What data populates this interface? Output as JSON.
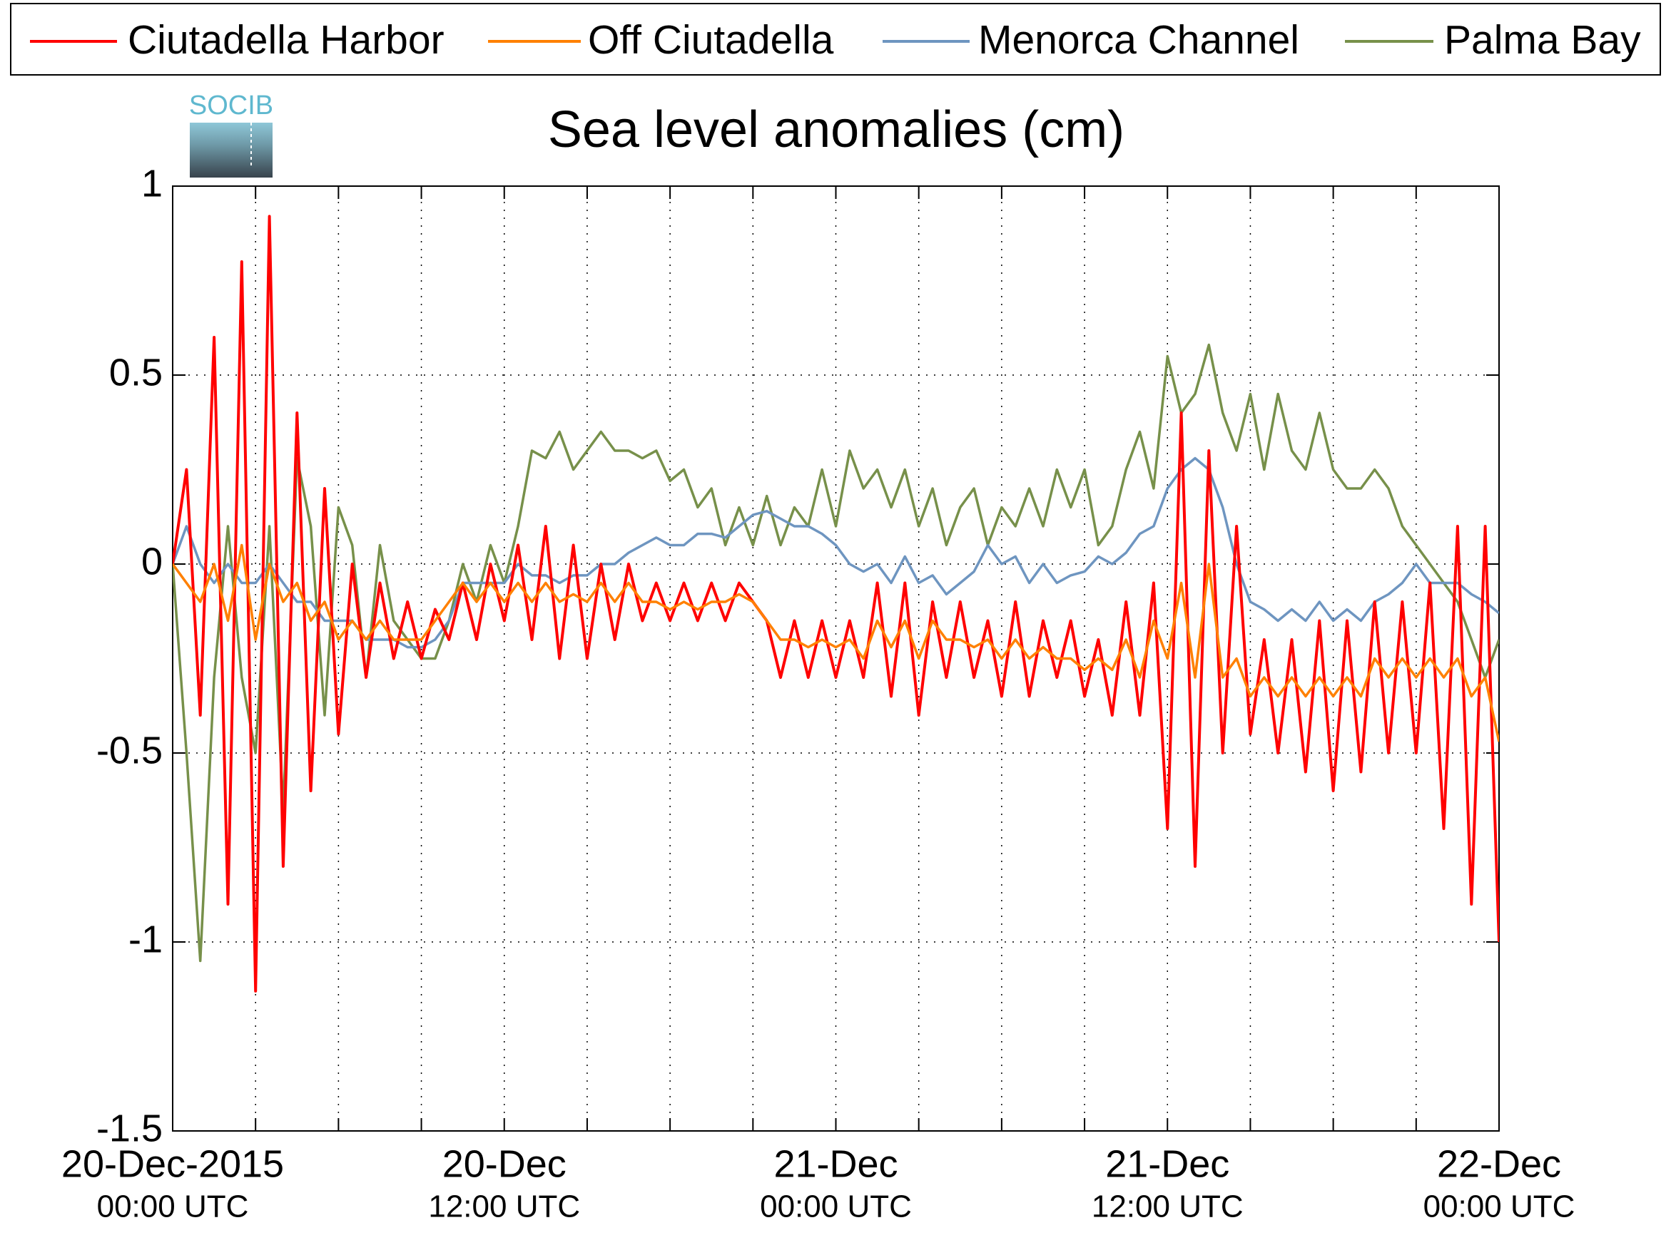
{
  "chart_data": {
    "type": "line",
    "title": "Sea level anomalies (cm)",
    "logo": "SOCIB",
    "x": [
      0,
      0.5,
      1,
      1.5,
      2,
      2.5,
      3,
      3.5,
      4,
      4.5,
      5,
      5.5,
      6,
      6.5,
      7,
      7.5,
      8,
      8.5,
      9,
      9.5,
      10,
      10.5,
      11,
      11.5,
      12,
      12.5,
      13,
      13.5,
      14,
      14.5,
      15,
      15.5,
      16,
      16.5,
      17,
      17.5,
      18,
      18.5,
      19,
      19.5,
      20,
      20.5,
      21,
      21.5,
      22,
      22.5,
      23,
      23.5,
      24,
      24.5,
      25,
      25.5,
      26,
      26.5,
      27,
      27.5,
      28,
      28.5,
      29,
      29.5,
      30,
      30.5,
      31,
      31.5,
      32,
      32.5,
      33,
      33.5,
      34,
      34.5,
      35,
      35.5,
      36,
      36.5,
      37,
      37.5,
      38,
      38.5,
      39,
      39.5,
      40,
      40.5,
      41,
      41.5,
      42,
      42.5,
      43,
      43.5,
      44,
      44.5,
      45,
      45.5,
      46,
      46.5,
      47,
      47.5,
      48
    ],
    "series": [
      {
        "name": "Ciutadella Harbor",
        "color": "#ff0000",
        "values": [
          0,
          0.25,
          -0.4,
          0.6,
          -0.9,
          0.8,
          -1.13,
          0.92,
          -0.8,
          0.4,
          -0.6,
          0.2,
          -0.45,
          0.0,
          -0.3,
          -0.05,
          -0.25,
          -0.1,
          -0.25,
          -0.12,
          -0.2,
          -0.05,
          -0.2,
          0.0,
          -0.15,
          0.05,
          -0.2,
          0.1,
          -0.25,
          0.05,
          -0.25,
          0.0,
          -0.2,
          0.0,
          -0.15,
          -0.05,
          -0.15,
          -0.05,
          -0.15,
          -0.05,
          -0.15,
          -0.05,
          -0.1,
          -0.15,
          -0.3,
          -0.15,
          -0.3,
          -0.15,
          -0.3,
          -0.15,
          -0.3,
          -0.05,
          -0.35,
          -0.05,
          -0.4,
          -0.1,
          -0.3,
          -0.1,
          -0.3,
          -0.15,
          -0.35,
          -0.1,
          -0.35,
          -0.15,
          -0.3,
          -0.15,
          -0.35,
          -0.2,
          -0.4,
          -0.1,
          -0.4,
          -0.05,
          -0.7,
          0.4,
          -0.8,
          0.3,
          -0.5,
          0.1,
          -0.45,
          -0.2,
          -0.5,
          -0.2,
          -0.55,
          -0.15,
          -0.6,
          -0.15,
          -0.55,
          -0.1,
          -0.5,
          -0.1,
          -0.5,
          -0.05,
          -0.7,
          0.1,
          -0.9,
          0.1,
          -1.0
        ]
      },
      {
        "name": "Off Ciutadella",
        "color": "#ff8000",
        "values": [
          0,
          -0.05,
          -0.1,
          0.0,
          -0.15,
          0.05,
          -0.2,
          0.0,
          -0.1,
          -0.05,
          -0.15,
          -0.1,
          -0.2,
          -0.15,
          -0.2,
          -0.15,
          -0.2,
          -0.2,
          -0.2,
          -0.15,
          -0.1,
          -0.05,
          -0.1,
          -0.05,
          -0.1,
          -0.05,
          -0.1,
          -0.05,
          -0.1,
          -0.08,
          -0.1,
          -0.05,
          -0.1,
          -0.05,
          -0.1,
          -0.1,
          -0.12,
          -0.1,
          -0.12,
          -0.1,
          -0.1,
          -0.08,
          -0.1,
          -0.15,
          -0.2,
          -0.2,
          -0.22,
          -0.2,
          -0.22,
          -0.2,
          -0.25,
          -0.15,
          -0.22,
          -0.15,
          -0.25,
          -0.15,
          -0.2,
          -0.2,
          -0.22,
          -0.2,
          -0.25,
          -0.2,
          -0.25,
          -0.22,
          -0.25,
          -0.25,
          -0.28,
          -0.25,
          -0.28,
          -0.2,
          -0.3,
          -0.15,
          -0.25,
          -0.05,
          -0.3,
          0.0,
          -0.3,
          -0.25,
          -0.35,
          -0.3,
          -0.35,
          -0.3,
          -0.35,
          -0.3,
          -0.35,
          -0.3,
          -0.35,
          -0.25,
          -0.3,
          -0.25,
          -0.3,
          -0.25,
          -0.3,
          -0.25,
          -0.35,
          -0.3,
          -0.47
        ]
      },
      {
        "name": "Menorca Channel",
        "color": "#6e95c0",
        "values": [
          0.0,
          0.1,
          0.0,
          -0.05,
          0.0,
          -0.05,
          -0.05,
          0.0,
          -0.05,
          -0.1,
          -0.1,
          -0.15,
          -0.15,
          -0.15,
          -0.2,
          -0.2,
          -0.2,
          -0.22,
          -0.22,
          -0.2,
          -0.15,
          -0.05,
          -0.05,
          -0.05,
          -0.05,
          0.0,
          -0.03,
          -0.03,
          -0.05,
          -0.03,
          -0.03,
          0.0,
          0.0,
          0.03,
          0.05,
          0.07,
          0.05,
          0.05,
          0.08,
          0.08,
          0.07,
          0.1,
          0.13,
          0.14,
          0.12,
          0.1,
          0.1,
          0.08,
          0.05,
          0.0,
          -0.02,
          0.0,
          -0.05,
          0.02,
          -0.05,
          -0.03,
          -0.08,
          -0.05,
          -0.02,
          0.05,
          0.0,
          0.02,
          -0.05,
          0.0,
          -0.05,
          -0.03,
          -0.02,
          0.02,
          0.0,
          0.03,
          0.08,
          0.1,
          0.2,
          0.25,
          0.28,
          0.25,
          0.15,
          0.0,
          -0.1,
          -0.12,
          -0.15,
          -0.12,
          -0.15,
          -0.1,
          -0.15,
          -0.12,
          -0.15,
          -0.1,
          -0.08,
          -0.05,
          0.0,
          -0.05,
          -0.05,
          -0.05,
          -0.08,
          -0.1,
          -0.13
        ]
      },
      {
        "name": "Palma Bay",
        "color": "#77904a",
        "values": [
          0.0,
          -0.5,
          -1.05,
          -0.3,
          0.1,
          -0.3,
          -0.5,
          0.1,
          -0.65,
          0.28,
          0.1,
          -0.4,
          0.15,
          0.05,
          -0.3,
          0.05,
          -0.15,
          -0.2,
          -0.25,
          -0.25,
          -0.15,
          0.0,
          -0.1,
          0.05,
          -0.05,
          0.1,
          0.3,
          0.28,
          0.35,
          0.25,
          0.3,
          0.35,
          0.3,
          0.3,
          0.28,
          0.3,
          0.22,
          0.25,
          0.15,
          0.2,
          0.05,
          0.15,
          0.05,
          0.18,
          0.05,
          0.15,
          0.1,
          0.25,
          0.1,
          0.3,
          0.2,
          0.25,
          0.15,
          0.25,
          0.1,
          0.2,
          0.05,
          0.15,
          0.2,
          0.05,
          0.15,
          0.1,
          0.2,
          0.1,
          0.25,
          0.15,
          0.25,
          0.05,
          0.1,
          0.25,
          0.35,
          0.2,
          0.55,
          0.4,
          0.45,
          0.58,
          0.4,
          0.3,
          0.45,
          0.25,
          0.45,
          0.3,
          0.25,
          0.4,
          0.25,
          0.2,
          0.2,
          0.25,
          0.2,
          0.1,
          0.05,
          0.0,
          -0.05,
          -0.1,
          -0.2,
          -0.3,
          -0.2
        ]
      }
    ],
    "xlim": [
      0,
      48
    ],
    "xticks": [
      {
        "value": 0,
        "label": "20-Dec-2015",
        "sublabel": "00:00 UTC"
      },
      3,
      6,
      9,
      {
        "value": 12,
        "label": "20-Dec",
        "sublabel": "12:00 UTC"
      },
      15,
      18,
      21,
      {
        "value": 24,
        "label": "21-Dec",
        "sublabel": "00:00 UTC"
      },
      27,
      30,
      33,
      {
        "value": 36,
        "label": "21-Dec",
        "sublabel": "12:00 UTC"
      },
      39,
      42,
      45,
      {
        "value": 48,
        "label": "22-Dec",
        "sublabel": "00:00 UTC"
      }
    ],
    "ylim": [
      -1.5,
      1
    ],
    "yticks": [
      -1.5,
      -1,
      -0.5,
      0,
      0.5,
      1
    ],
    "grid": true,
    "legend": "top"
  }
}
